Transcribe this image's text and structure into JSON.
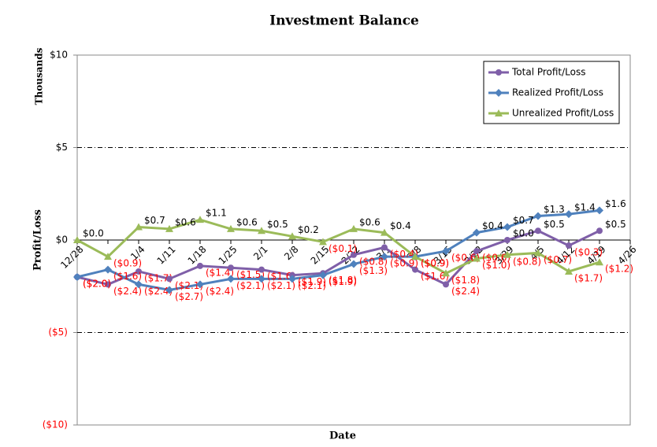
{
  "chart_data": {
    "type": "line",
    "title": "Investment Balance",
    "xlabel": "Date",
    "ylabel": "Profit/Loss",
    "display_unit": "Thousands",
    "categories": [
      "12/28",
      null,
      "1/4",
      "1/11",
      "1/18",
      "1/25",
      "2/1",
      "2/8",
      "2/15",
      "2/22",
      "3/1",
      "3/8",
      "3/15",
      "3/22",
      "3/29",
      "4/5",
      "4/12",
      "4/19",
      "4/26"
    ],
    "series": [
      {
        "name": "Total Profit/Loss",
        "color": "#7f5fa8",
        "marker": "circle",
        "values": [
          -2.0,
          -2.4,
          -1.7,
          -2.1,
          -1.4,
          -1.5,
          -1.6,
          -1.9,
          -1.8,
          -0.8,
          -0.4,
          -1.6,
          -2.4,
          -0.6,
          0.0,
          0.5,
          -0.3,
          0.5,
          null
        ],
        "value_labels": [
          "($2.0)",
          "($2.4)",
          "($1.7)",
          "($2.1)",
          "($1.4)",
          "($1.5)",
          "($1.6)",
          "($1.9)",
          "($1.8)",
          "($0.8)",
          "($0.4)",
          "($1.6)",
          "($2.4)",
          "($0.6)",
          "$0.0",
          "$0.5",
          "($0.3)",
          "$0.5",
          null
        ]
      },
      {
        "name": "Realized Profit/Loss",
        "color": "#4f81bd",
        "marker": "diamond",
        "values": [
          -2.0,
          -1.6,
          -2.4,
          -2.7,
          -2.4,
          -2.1,
          -2.1,
          -2.1,
          -1.9,
          -1.3,
          -0.9,
          -0.9,
          -0.6,
          0.4,
          0.7,
          1.3,
          1.4,
          1.6,
          null
        ],
        "value_labels": [
          "($2.0)",
          "($1.6)",
          "($2.4)",
          "($2.7)",
          "($2.4)",
          "($2.1)",
          "($2.1)",
          "($2.1)",
          "($1.9)",
          "($1.3)",
          "($0.9)",
          "($0.9)",
          "($0.6)",
          "$0.4",
          "$0.7",
          "$1.3",
          "$1.4",
          "$1.6",
          null
        ]
      },
      {
        "name": "Unrealized Profit/Loss",
        "color": "#9bbb59",
        "marker": "triangle",
        "values": [
          0.0,
          -0.9,
          0.7,
          0.6,
          1.1,
          0.6,
          0.5,
          0.2,
          -0.1,
          0.6,
          0.4,
          -0.9,
          -1.8,
          -1.0,
          -0.8,
          -0.7,
          -1.7,
          -1.2,
          null
        ],
        "value_labels": [
          "$0.0",
          "($0.9)",
          "$0.7",
          "$0.6",
          "$1.1",
          "$0.6",
          "$0.5",
          "$0.2",
          "($0.1)",
          "$0.6",
          "$0.4",
          "($0.9)",
          "($1.8)",
          "($1.0)",
          "($0.8)",
          "($0.7)",
          "($1.7)",
          "($1.2)",
          null
        ]
      }
    ],
    "ylim": [
      -10,
      10
    ],
    "yticks": [
      {
        "value": -10,
        "label": "($10)"
      },
      {
        "value": -5,
        "label": "($5)"
      },
      {
        "value": 0,
        "label": "$0"
      },
      {
        "value": 5,
        "label": "$5"
      },
      {
        "value": 10,
        "label": "$10"
      }
    ],
    "grid": true,
    "legend": "upper right",
    "negative_label_color": "#ff0000"
  }
}
